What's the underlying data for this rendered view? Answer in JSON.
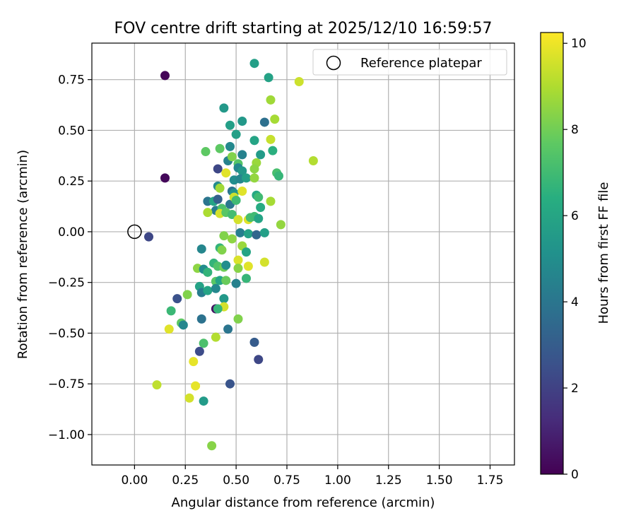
{
  "chart_data": {
    "type": "scatter",
    "title": "FOV centre drift starting at 2025/12/10 16:59:57",
    "xlabel": "Angular distance from reference (arcmin)",
    "ylabel": "Rotation from reference (arcmin)",
    "xlim": [
      -0.21,
      1.87
    ],
    "ylim": [
      -1.15,
      0.93
    ],
    "xticks": [
      0.0,
      0.25,
      0.5,
      0.75,
      1.0,
      1.25,
      1.5,
      1.75
    ],
    "xtick_labels": [
      "0.00",
      "0.25",
      "0.50",
      "0.75",
      "1.00",
      "1.25",
      "1.50",
      "1.75"
    ],
    "yticks": [
      0.75,
      0.5,
      0.25,
      0.0,
      -0.25,
      -0.5,
      -0.75,
      -1.0
    ],
    "ytick_labels": [
      "0.75",
      "0.50",
      "0.25",
      "0.00",
      "−0.25",
      "−0.50",
      "−0.75",
      "−1.00"
    ],
    "grid": true,
    "legend": {
      "position": "top-right",
      "entries": [
        "Reference platepar"
      ]
    },
    "colorbar": {
      "label": "Hours from first FF file",
      "colormap": "viridis",
      "range": [
        0,
        10.25
      ],
      "ticks": [
        0,
        2,
        4,
        6,
        8,
        10
      ],
      "tick_labels": [
        "0",
        "2",
        "4",
        "6",
        "8",
        "10"
      ]
    },
    "reference_point": {
      "x": 0.0,
      "y": 0.0
    },
    "points": [
      [
        0.15,
        0.77,
        0.1
      ],
      [
        0.15,
        0.265,
        0.2
      ],
      [
        0.07,
        -0.025,
        2.2
      ],
      [
        0.59,
        0.83,
        5.8
      ],
      [
        0.66,
        0.76,
        5.9
      ],
      [
        0.81,
        0.74,
        9.5
      ],
      [
        0.67,
        0.65,
        8.8
      ],
      [
        0.44,
        0.61,
        5.5
      ],
      [
        0.53,
        0.545,
        5.5
      ],
      [
        0.64,
        0.54,
        3.8
      ],
      [
        0.69,
        0.555,
        8.9
      ],
      [
        0.47,
        0.525,
        5.8
      ],
      [
        0.5,
        0.48,
        5.8
      ],
      [
        0.59,
        0.45,
        6.0
      ],
      [
        0.67,
        0.455,
        9.4
      ],
      [
        0.35,
        0.395,
        7.7
      ],
      [
        0.42,
        0.41,
        7.7
      ],
      [
        0.47,
        0.42,
        4.8
      ],
      [
        0.53,
        0.38,
        4.5
      ],
      [
        0.62,
        0.38,
        5.6
      ],
      [
        0.68,
        0.4,
        6.5
      ],
      [
        0.88,
        0.35,
        9.1
      ],
      [
        0.46,
        0.35,
        4.6
      ],
      [
        0.48,
        0.37,
        8.3
      ],
      [
        0.51,
        0.335,
        7.5
      ],
      [
        0.51,
        0.315,
        4.8
      ],
      [
        0.6,
        0.34,
        8.7
      ],
      [
        0.59,
        0.31,
        8.5
      ],
      [
        0.41,
        0.31,
        2.2
      ],
      [
        0.45,
        0.29,
        9.8
      ],
      [
        0.53,
        0.3,
        5.5
      ],
      [
        0.7,
        0.29,
        7.2
      ],
      [
        0.71,
        0.275,
        6.8
      ],
      [
        0.49,
        0.255,
        5.0
      ],
      [
        0.52,
        0.26,
        4.7
      ],
      [
        0.55,
        0.265,
        5.8
      ],
      [
        0.59,
        0.265,
        8.6
      ],
      [
        0.41,
        0.225,
        4.9
      ],
      [
        0.42,
        0.215,
        8.8
      ],
      [
        0.48,
        0.2,
        3.9
      ],
      [
        0.49,
        0.19,
        5.3
      ],
      [
        0.53,
        0.2,
        9.8
      ],
      [
        0.6,
        0.18,
        6.2
      ],
      [
        0.61,
        0.17,
        7.0
      ],
      [
        0.36,
        0.15,
        4.0
      ],
      [
        0.39,
        0.15,
        6.0
      ],
      [
        0.41,
        0.16,
        3.2
      ],
      [
        0.47,
        0.135,
        4.1
      ],
      [
        0.49,
        0.17,
        9.5
      ],
      [
        0.5,
        0.155,
        7.0
      ],
      [
        0.4,
        0.105,
        4.3
      ],
      [
        0.43,
        0.115,
        7.3
      ],
      [
        0.36,
        0.095,
        9.0
      ],
      [
        0.42,
        0.09,
        9.6
      ],
      [
        0.45,
        0.095,
        7.6
      ],
      [
        0.48,
        0.085,
        7.1
      ],
      [
        0.51,
        0.06,
        9.6
      ],
      [
        0.56,
        0.06,
        9.8
      ],
      [
        0.57,
        0.07,
        7.2
      ],
      [
        0.62,
        0.12,
        6.3
      ],
      [
        0.59,
        0.075,
        7.0
      ],
      [
        0.61,
        0.065,
        6.0
      ],
      [
        0.67,
        0.15,
        8.9
      ],
      [
        0.72,
        0.035,
        8.6
      ],
      [
        0.52,
        -0.005,
        4.4
      ],
      [
        0.44,
        -0.02,
        8.3
      ],
      [
        0.48,
        -0.035,
        8.5
      ],
      [
        0.56,
        -0.01,
        5.9
      ],
      [
        0.6,
        -0.015,
        3.4
      ],
      [
        0.64,
        -0.005,
        5.8
      ],
      [
        0.33,
        -0.085,
        4.7
      ],
      [
        0.42,
        -0.08,
        6.7
      ],
      [
        0.43,
        -0.09,
        8.3
      ],
      [
        0.53,
        -0.07,
        8.7
      ],
      [
        0.55,
        -0.1,
        6.0
      ],
      [
        0.51,
        -0.14,
        9.7
      ],
      [
        0.56,
        -0.17,
        9.8
      ],
      [
        0.64,
        -0.15,
        9.6
      ],
      [
        0.31,
        -0.18,
        8.5
      ],
      [
        0.34,
        -0.185,
        5.0
      ],
      [
        0.36,
        -0.2,
        6.7
      ],
      [
        0.39,
        -0.155,
        6.7
      ],
      [
        0.41,
        -0.17,
        7.4
      ],
      [
        0.44,
        -0.175,
        8.0
      ],
      [
        0.45,
        -0.165,
        5.0
      ],
      [
        0.51,
        -0.18,
        8.4
      ],
      [
        0.55,
        -0.23,
        6.8
      ],
      [
        0.5,
        -0.255,
        4.5
      ],
      [
        0.32,
        -0.27,
        5.9
      ],
      [
        0.33,
        -0.3,
        4.3
      ],
      [
        0.36,
        -0.29,
        6.0
      ],
      [
        0.4,
        -0.245,
        7.6
      ],
      [
        0.4,
        -0.28,
        4.8
      ],
      [
        0.42,
        -0.24,
        6.0
      ],
      [
        0.45,
        -0.24,
        7.9
      ],
      [
        0.44,
        -0.33,
        5.5
      ],
      [
        0.44,
        -0.37,
        9.6
      ],
      [
        0.26,
        -0.31,
        8.3
      ],
      [
        0.21,
        -0.33,
        2.6
      ],
      [
        0.18,
        -0.39,
        6.9
      ],
      [
        0.23,
        -0.45,
        7.7
      ],
      [
        0.24,
        -0.46,
        4.7
      ],
      [
        0.4,
        -0.38,
        0.5
      ],
      [
        0.41,
        -0.38,
        6.8
      ],
      [
        0.33,
        -0.43,
        3.9
      ],
      [
        0.46,
        -0.48,
        4.0
      ],
      [
        0.51,
        -0.43,
        8.3
      ],
      [
        0.4,
        -0.52,
        9.1
      ],
      [
        0.34,
        -0.55,
        7.3
      ],
      [
        0.17,
        -0.48,
        9.8
      ],
      [
        0.32,
        -0.59,
        2.4
      ],
      [
        0.29,
        -0.64,
        9.9
      ],
      [
        0.59,
        -0.545,
        3.0
      ],
      [
        0.61,
        -0.63,
        2.2
      ],
      [
        0.47,
        -0.75,
        2.7
      ],
      [
        0.11,
        -0.755,
        9.3
      ],
      [
        0.3,
        -0.76,
        9.9
      ],
      [
        0.27,
        -0.82,
        9.6
      ],
      [
        0.34,
        -0.835,
        5.6
      ],
      [
        0.38,
        -1.055,
        8.4
      ]
    ]
  }
}
